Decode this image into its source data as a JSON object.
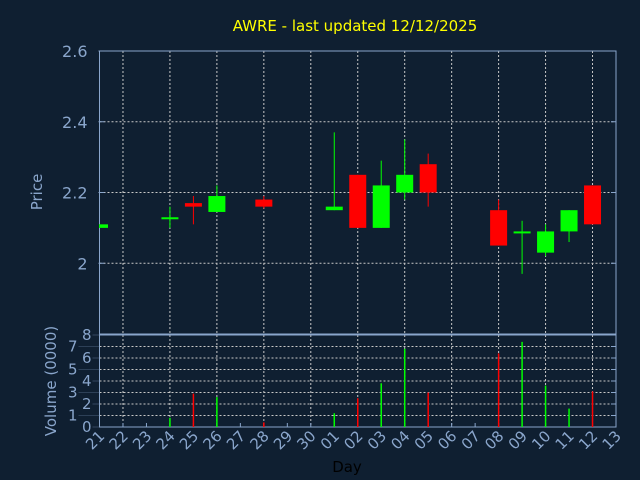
{
  "chart_data": {
    "type": "candlestick",
    "title": "AWRE - last updated 12/12/2025",
    "xlabel": "Day",
    "ylabel": "Price",
    "volume_label": "Volume (0000)",
    "ylim": [
      1.8,
      2.6
    ],
    "volume_ylim": [
      0,
      8
    ],
    "price_ticks": [
      "2",
      "2.2",
      "2.4",
      "2.6"
    ],
    "volume_ticks": [
      "0",
      "1",
      "2",
      "3",
      "4",
      "5",
      "6",
      "7",
      "8"
    ],
    "x_tick_labels": [
      "21",
      "22",
      "23",
      "24",
      "25",
      "26",
      "27",
      "28",
      "29",
      "30",
      "01",
      "02",
      "03",
      "04",
      "05",
      "06",
      "07",
      "08",
      "09",
      "10",
      "11",
      "12",
      "13"
    ],
    "x_tick_dates": [
      "2025-11-21",
      "2025-11-22",
      "2025-11-23",
      "2025-11-24",
      "2025-11-25",
      "2025-11-26",
      "2025-11-27",
      "2025-11-28",
      "2025-11-29",
      "2025-11-30",
      "2025-12-01",
      "2025-12-02",
      "2025-12-03",
      "2025-12-04",
      "2025-12-05",
      "2025-12-06",
      "2025-12-07",
      "2025-12-08",
      "2025-12-09",
      "2025-12-10",
      "2025-12-11",
      "2025-12-12",
      "2025-12-13"
    ],
    "grid": true,
    "colors": {
      "up": "#00ff00",
      "down": "#ff0000",
      "background": "#0f1f31",
      "axis": "#8aa6cc",
      "grid": "#c8c8c8",
      "title": "#ffff00"
    },
    "candles": [
      {
        "date": "2025-11-21",
        "open": 2.1,
        "high": 2.11,
        "low": 2.1,
        "close": 2.11,
        "volume": 0.0
      },
      {
        "date": "2025-11-24",
        "open": 2.13,
        "high": 2.16,
        "low": 2.1,
        "close": 2.13,
        "volume": 0.8
      },
      {
        "date": "2025-11-25",
        "open": 2.17,
        "high": 2.19,
        "low": 2.11,
        "close": 2.16,
        "volume": 2.9
      },
      {
        "date": "2025-11-26",
        "open": 2.145,
        "high": 2.22,
        "low": 2.145,
        "close": 2.19,
        "volume": 2.6
      },
      {
        "date": "2025-11-28",
        "open": 2.18,
        "high": 2.19,
        "low": 2.155,
        "close": 2.16,
        "volume": 0.4
      },
      {
        "date": "2025-12-01",
        "open": 2.15,
        "high": 2.37,
        "low": 2.15,
        "close": 2.16,
        "volume": 1.2
      },
      {
        "date": "2025-12-02",
        "open": 2.25,
        "high": 2.25,
        "low": 2.1,
        "close": 2.1,
        "volume": 2.5
      },
      {
        "date": "2025-12-03",
        "open": 2.1,
        "high": 2.29,
        "low": 2.1,
        "close": 2.22,
        "volume": 3.8
      },
      {
        "date": "2025-12-04",
        "open": 2.2,
        "high": 2.35,
        "low": 2.18,
        "close": 2.25,
        "volume": 6.8
      },
      {
        "date": "2025-12-05",
        "open": 2.28,
        "high": 2.31,
        "low": 2.16,
        "close": 2.2,
        "volume": 3.0
      },
      {
        "date": "2025-12-08",
        "open": 2.15,
        "high": 2.18,
        "low": 2.05,
        "close": 2.05,
        "volume": 6.4
      },
      {
        "date": "2025-12-09",
        "open": 2.09,
        "high": 2.12,
        "low": 1.97,
        "close": 2.09,
        "volume": 7.4
      },
      {
        "date": "2025-12-10",
        "open": 2.03,
        "high": 2.11,
        "low": 2.02,
        "close": 2.09,
        "volume": 3.6
      },
      {
        "date": "2025-12-11",
        "open": 2.09,
        "high": 2.15,
        "low": 2.06,
        "close": 2.15,
        "volume": 1.6
      },
      {
        "date": "2025-12-12",
        "open": 2.22,
        "high": 2.22,
        "low": 2.11,
        "close": 2.11,
        "volume": 3.1
      }
    ]
  }
}
